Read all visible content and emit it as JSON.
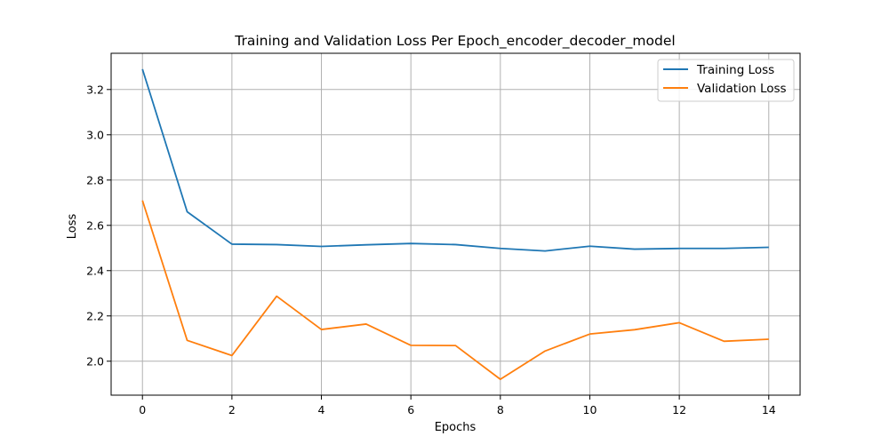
{
  "chart_data": {
    "type": "line",
    "title": "Training and Validation Loss Per Epoch_encoder_decoder_model",
    "xlabel": "Epochs",
    "ylabel": "Loss",
    "x": [
      0,
      1,
      2,
      3,
      4,
      5,
      6,
      7,
      8,
      9,
      10,
      11,
      12,
      13,
      14
    ],
    "xlim": [
      -0.7,
      14.7
    ],
    "ylim": [
      1.85,
      3.36
    ],
    "xticks": [
      0,
      2,
      4,
      6,
      8,
      10,
      12,
      14
    ],
    "yticks": [
      2.0,
      2.2,
      2.4,
      2.6,
      2.8,
      3.0,
      3.2
    ],
    "grid": true,
    "legend_position": "top-right",
    "series": [
      {
        "name": "Training Loss",
        "color": "#1f77b4",
        "values": [
          3.29,
          2.66,
          2.517,
          2.515,
          2.507,
          2.514,
          2.52,
          2.515,
          2.498,
          2.487,
          2.508,
          2.495,
          2.498,
          2.498,
          2.503
        ]
      },
      {
        "name": "Validation Loss",
        "color": "#ff7f0e",
        "values": [
          2.71,
          2.092,
          2.025,
          2.287,
          2.14,
          2.164,
          2.07,
          2.069,
          1.92,
          2.045,
          2.12,
          2.139,
          2.17,
          2.088,
          2.097
        ]
      }
    ]
  }
}
